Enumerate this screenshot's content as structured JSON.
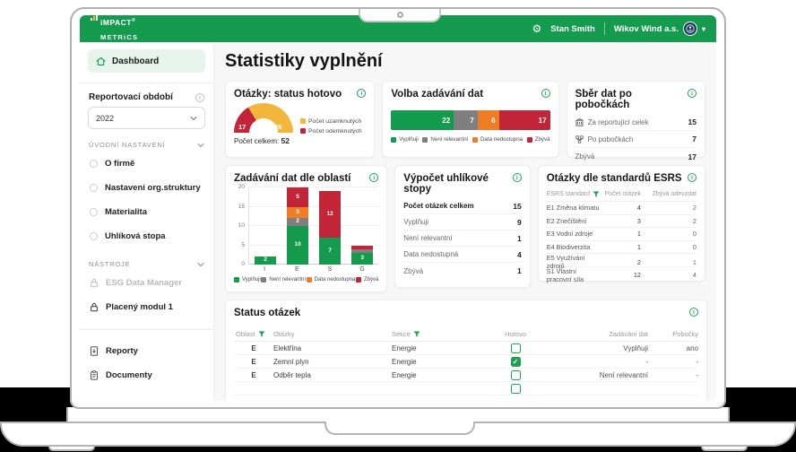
{
  "topbar": {
    "logo": {
      "line1": "iMPACT",
      "reg": "®",
      "line2": "METRiCS"
    },
    "user": "Stan Smith",
    "company": "Wikov Wind a.s."
  },
  "sidebar": {
    "dashboard": "Dashboard",
    "period_label": "Reportovací období",
    "period_value": "2022",
    "sections": [
      {
        "label": "ÚVODNÍ NASTAVENÍ",
        "items": [
          "O firmě",
          "Nastavení org.struktury",
          "Materialita",
          "Uhlíková stopa"
        ]
      },
      {
        "label": "NÁSTROJE",
        "items": [
          "ESG Data Manager",
          "Placený modul 1"
        ]
      }
    ],
    "footer_items": [
      "Reporty",
      "Documenty"
    ]
  },
  "main": {
    "title": "Statistiky vyplnění",
    "cards": {
      "status": {
        "title": "Otázky: status hotovo",
        "total_label": "Počet celkem:",
        "total": "52"
      },
      "choice": {
        "title": "Volba zadávání dat"
      },
      "branches": {
        "title": "Sběr dat po pobočkách",
        "rows": [
          {
            "icon": "building-icon",
            "label": "Za reportující celek",
            "value": "15"
          },
          {
            "icon": "hierarchy-icon",
            "label": "Po pobočkách",
            "value": "7"
          },
          {
            "icon": "",
            "label": "Zbývá",
            "value": "17"
          }
        ]
      },
      "areas": {
        "title": "Zadávání dat dle oblastí"
      },
      "carbon": {
        "title": "Výpočet uhlíkové stopy",
        "rows": [
          {
            "label": "Počet otázek celkem",
            "value": "15",
            "bold": true
          },
          {
            "label": "Vyplňuji",
            "value": "9",
            "bold": false
          },
          {
            "label": "Není relevantní",
            "value": "1",
            "bold": false
          },
          {
            "label": "Data nedostupná",
            "value": "4",
            "bold": false
          },
          {
            "label": "Zbývá",
            "value": "1",
            "bold": false
          }
        ]
      },
      "esrs": {
        "title": "Otázky dle standardů ESRS",
        "headers": [
          "ESRS standard",
          "Počet otázek",
          "Zbývá odevzdat"
        ],
        "rows": [
          [
            "E1 Změna klimatu",
            "4",
            "2"
          ],
          [
            "E2 Znečištění",
            "3",
            "2"
          ],
          [
            "E3 Vodní zdroje",
            "1",
            "0"
          ],
          [
            "E4 Biodiverzita",
            "1",
            "0"
          ],
          [
            "E5 Využívání zdrojů",
            "2",
            "1"
          ],
          [
            "S1 Vlastní pracovní síla",
            "12",
            "4"
          ]
        ]
      },
      "questions": {
        "title": "Status otázek",
        "headers": [
          "Oblast",
          "Otázky",
          "Sekce",
          "Hotovo",
          "Zadávání dat",
          "Pobočky"
        ],
        "rows": [
          {
            "oblast": "E",
            "otazka": "Elektřina",
            "sekce": "Energie",
            "hotovo": false,
            "zadavani": "Vyplňuji",
            "pobocky": "ano"
          },
          {
            "oblast": "E",
            "otazka": "Zemní plyn",
            "sekce": "Energie",
            "hotovo": true,
            "zadavani": "-",
            "pobocky": "-"
          },
          {
            "oblast": "E",
            "otazka": "Odběr tepla",
            "sekce": "Energie",
            "hotovo": false,
            "zadavani": "Není relevantní",
            "pobocky": "-"
          },
          {
            "oblast": "",
            "otazka": "",
            "sekce": "",
            "hotovo": false,
            "zadavani": "",
            "pobocky": ""
          }
        ]
      }
    }
  },
  "colors": {
    "brand_green": "#149b4e",
    "light_green_bg": "#e6f4ec",
    "red": "#c22438",
    "yellow": "#f2b63c",
    "orange": "#ef7d23",
    "gray_segment": "#7f7f7f"
  },
  "chart_data": [
    {
      "id": "questions_status",
      "type": "pie",
      "style": "half-donut",
      "title": "Otázky: status hotovo",
      "total_label": "Počet celkem:",
      "total": 52,
      "slices": [
        {
          "label": "Počet odemknutých",
          "value": 17,
          "color": "#c22438"
        },
        {
          "label": "Počet uzamknutých",
          "value": 35,
          "color": "#f2b63c"
        }
      ],
      "legend": [
        {
          "label": "Počet uzamknutých",
          "color": "#f2b63c"
        },
        {
          "label": "Počet odemknutých",
          "color": "#c22438"
        }
      ]
    },
    {
      "id": "data_entry_choice",
      "type": "bar",
      "orientation": "horizontal",
      "stacked": true,
      "title": "Volba zadávání dat",
      "segments": [
        {
          "label": "Vyplňuji",
          "value": 22,
          "color": "#149b4e"
        },
        {
          "label": "Není relevantní",
          "value": 7,
          "color": "#7f7f7f"
        },
        {
          "label": "Data nedostupna",
          "value": 6,
          "color": "#ef7d23"
        },
        {
          "label": "Zbývá",
          "value": 17,
          "color": "#c22438"
        }
      ]
    },
    {
      "id": "areas",
      "type": "bar",
      "stacked": true,
      "title": "Zadávání dat dle oblastí",
      "categories": [
        "I",
        "E",
        "S",
        "G"
      ],
      "series": [
        {
          "name": "Vyplňuji",
          "color": "#149b4e",
          "values": [
            2,
            10,
            7,
            3
          ]
        },
        {
          "name": "Není relevantní",
          "color": "#7f7f7f",
          "values": [
            0,
            2,
            0,
            1
          ]
        },
        {
          "name": "Data nedostupna",
          "color": "#ef7d23",
          "values": [
            0,
            3,
            0,
            0
          ]
        },
        {
          "name": "Zbývá",
          "color": "#c22438",
          "values": [
            0,
            5,
            12,
            1
          ]
        }
      ],
      "ylim": [
        0,
        20
      ],
      "yticks": [
        0,
        5,
        10,
        15,
        20
      ],
      "legend_position": "bottom"
    }
  ]
}
